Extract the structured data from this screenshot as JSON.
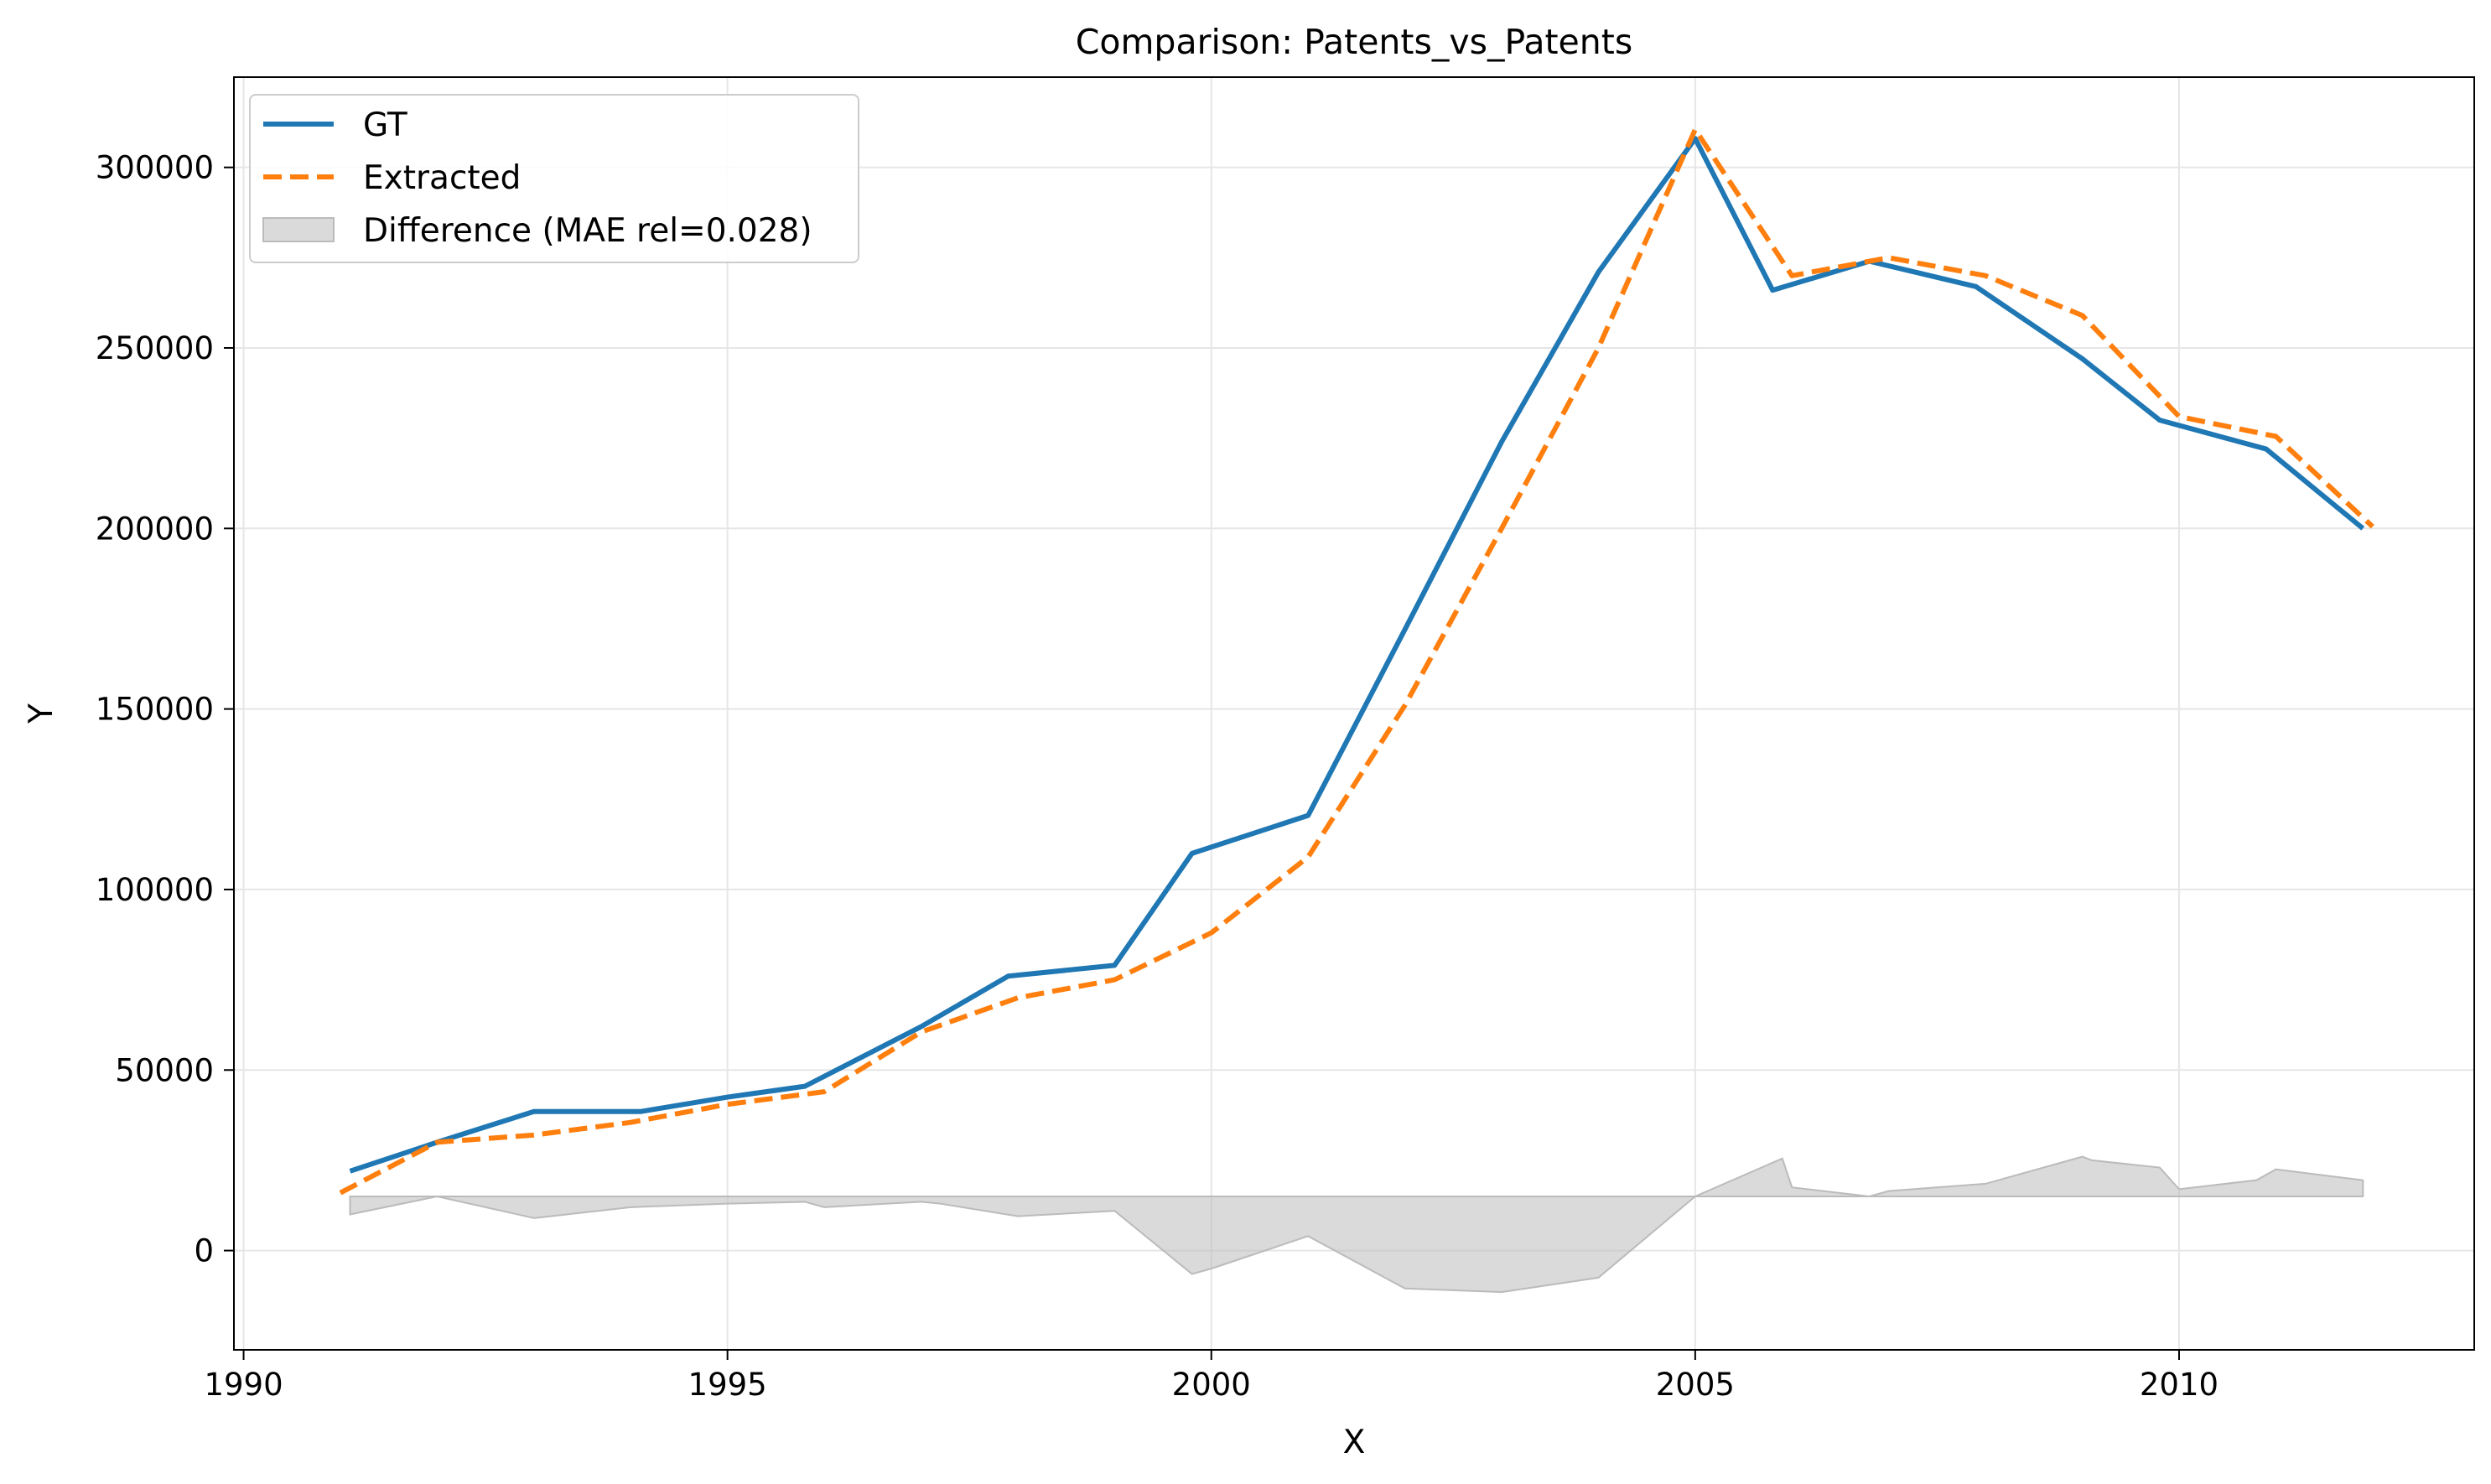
{
  "chart_data": {
    "type": "line",
    "title": "Comparison: Patents_vs_Patents",
    "xlabel": "X",
    "ylabel": "Y",
    "xlim": [
      1989.9,
      2013.05
    ],
    "ylim": [
      -27500,
      325000
    ],
    "xticks": [
      1990,
      1995,
      2000,
      2005,
      2010
    ],
    "xtick_labels": [
      "1990",
      "1995",
      "2000",
      "2005",
      "2010"
    ],
    "yticks": [
      0,
      50000,
      100000,
      150000,
      200000,
      250000,
      300000
    ],
    "ytick_labels": [
      "0",
      "50000",
      "100000",
      "150000",
      "200000",
      "250000",
      "300000"
    ],
    "grid": true,
    "legend_position": "top-left",
    "series": [
      {
        "name": "GT",
        "style": "solid",
        "color": "#1f77b4",
        "x": [
          1991.1,
          1992.0,
          1993.0,
          1994.1,
          1995.0,
          1995.8,
          1997.0,
          1997.9,
          1999.0,
          1999.8,
          2001.0,
          2002.0,
          2003.0,
          2004.0,
          2005.0,
          2005.8,
          2006.8,
          2007.9,
          2009.0,
          2009.8,
          2010.9,
          2011.9
        ],
        "values": [
          22000,
          30000,
          38500,
          38500,
          42500,
          45500,
          62000,
          76000,
          79000,
          110000,
          120500,
          172000,
          224000,
          271000,
          308000,
          266000,
          274000,
          267000,
          247000,
          230000,
          222000,
          200000
        ]
      },
      {
        "name": "Extracted",
        "style": "dashed",
        "color": "#ff7f0e",
        "x": [
          1991.0,
          1992.0,
          1993.0,
          1994.0,
          1995.0,
          1996.0,
          1997.0,
          1998.0,
          1999.0,
          2000.0,
          2001.0,
          2002.0,
          2003.0,
          2004.0,
          2005.0,
          2006.0,
          2007.0,
          2008.0,
          2009.0,
          2010.0,
          2011.0,
          2012.0
        ],
        "values": [
          16000,
          30000,
          32000,
          35500,
          40500,
          44000,
          60500,
          70000,
          75000,
          88000,
          109000,
          151000,
          200000,
          250000,
          310500,
          270000,
          275000,
          270000,
          259000,
          231000,
          225500,
          200500
        ]
      }
    ],
    "difference": {
      "name": "Difference (MAE rel=0.028)",
      "color": "#bbbbbb",
      "baseline": 15000,
      "x": [
        1991.1,
        1992.0,
        1993.0,
        1994.0,
        1995.0,
        1995.8,
        1996.0,
        1997.0,
        1997.2,
        1998.0,
        1999.0,
        1999.8,
        2000.0,
        2001.0,
        2002.0,
        2003.0,
        2004.0,
        2005.0,
        2005.9,
        2006.0,
        2006.8,
        2007.0,
        2008.0,
        2008.2,
        2009.0,
        2009.1,
        2009.8,
        2010.0,
        2010.8,
        2011.0,
        2011.9
      ],
      "values": [
        10000,
        15000,
        9000,
        12000,
        13000,
        13500,
        12000,
        13500,
        13000,
        9500,
        11000,
        -6500,
        -5000,
        4000,
        -10500,
        -11500,
        -7500,
        15000,
        25500,
        17500,
        15000,
        16500,
        18500,
        20000,
        26000,
        25000,
        23000,
        17000,
        19500,
        22500,
        19500
      ]
    }
  }
}
